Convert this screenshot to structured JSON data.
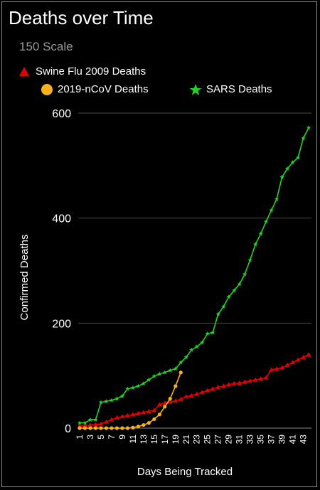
{
  "title": "Deaths over Time",
  "subtitle": "150 Scale",
  "colors": {
    "background": "#000000",
    "grid": "#4a4a4a",
    "swine": "#e00000",
    "ncov": "#f7b21e",
    "sars": "#22d422",
    "text": "#ffffff"
  },
  "chart_data": {
    "type": "line",
    "title": "Deaths over Time",
    "subtitle": "150 Scale",
    "xlabel": "Days Being Tracked",
    "ylabel": "Confirmed  Deaths",
    "ylim": [
      0,
      600
    ],
    "yticks": [
      0,
      200,
      400,
      600
    ],
    "xlim": [
      1,
      44
    ],
    "xticks": [
      1,
      3,
      5,
      7,
      9,
      11,
      13,
      15,
      17,
      19,
      21,
      23,
      25,
      27,
      29,
      31,
      33,
      35,
      37,
      39,
      41,
      43
    ],
    "grid": true,
    "legend_position": "top-left",
    "series": [
      {
        "name": "Swine Flu 2009 Deaths",
        "marker": "triangle",
        "x": [
          1,
          2,
          3,
          4,
          5,
          6,
          7,
          8,
          9,
          10,
          11,
          12,
          13,
          14,
          15,
          16,
          17,
          18,
          19,
          20,
          21,
          22,
          23,
          24,
          25,
          26,
          27,
          28,
          29,
          30,
          31,
          32,
          33,
          34,
          35,
          36,
          37,
          38,
          39,
          40,
          41,
          42,
          43,
          44
        ],
        "values": [
          4,
          5,
          6,
          7,
          8,
          12,
          16,
          20,
          22,
          24,
          26,
          28,
          30,
          32,
          34,
          45,
          48,
          50,
          52,
          55,
          60,
          62,
          65,
          68,
          72,
          75,
          78,
          80,
          83,
          85,
          86,
          88,
          90,
          92,
          94,
          96,
          111,
          113,
          115,
          120,
          125,
          130,
          135,
          140
        ]
      },
      {
        "name": "2019-nCoV Deaths",
        "marker": "circle",
        "x": [
          1,
          2,
          3,
          4,
          5,
          6,
          7,
          8,
          9,
          10,
          11,
          12,
          13,
          14,
          15,
          16,
          17,
          18,
          19,
          20
        ],
        "values": [
          0,
          0,
          0,
          0,
          0,
          0,
          0,
          0,
          0,
          0,
          1,
          3,
          6,
          10,
          17,
          26,
          41,
          56,
          80,
          106
        ]
      },
      {
        "name": "SARS Deaths",
        "marker": "star",
        "x": [
          1,
          2,
          3,
          4,
          5,
          6,
          7,
          8,
          9,
          10,
          11,
          12,
          13,
          14,
          15,
          16,
          17,
          18,
          19,
          20,
          21,
          22,
          23,
          24,
          25,
          26,
          27,
          28,
          29,
          30,
          31,
          32,
          33,
          34,
          35,
          36,
          37,
          38,
          39,
          40,
          41,
          42,
          43,
          44
        ],
        "values": [
          10,
          10,
          16,
          16,
          49,
          51,
          53,
          56,
          61,
          75,
          77,
          80,
          85,
          92,
          99,
          103,
          106,
          110,
          113,
          125,
          135,
          149,
          155,
          163,
          180,
          182,
          217,
          231,
          250,
          262,
          274,
          293,
          320,
          350,
          370,
          393,
          415,
          436,
          478,
          494,
          506,
          515,
          552,
          572
        ]
      }
    ]
  }
}
